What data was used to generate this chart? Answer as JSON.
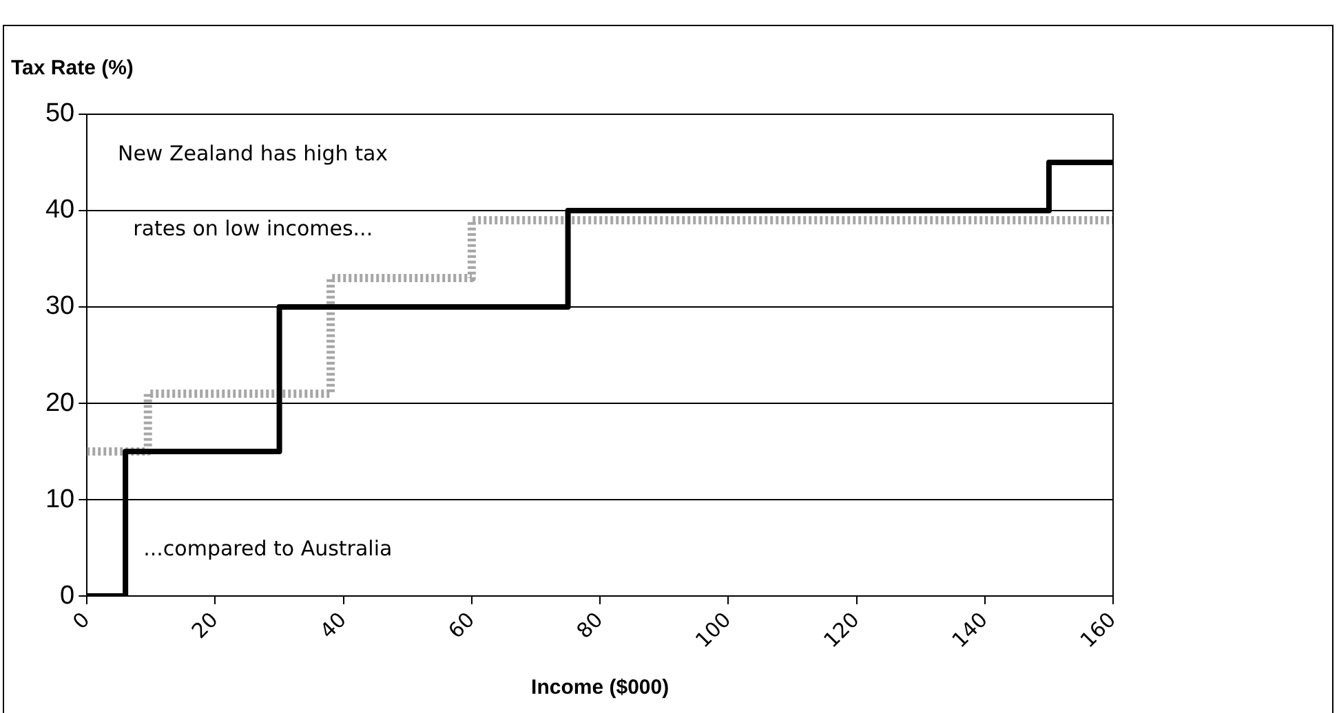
{
  "chart_data": {
    "type": "step",
    "ylabel": "Tax Rate (%)",
    "xlabel": "Income ($000)",
    "series": [
      {
        "color": "#000000",
        "line_style": "solid",
        "x": [
          0,
          6,
          30,
          75,
          150,
          160
        ],
        "values": [
          0,
          15,
          30,
          40,
          45,
          45
        ]
      },
      {
        "color": "#a6a6a6",
        "line_style": "dotted",
        "x": [
          0,
          9.5,
          38,
          60,
          160
        ],
        "values": [
          15,
          21,
          33,
          39,
          39
        ]
      }
    ],
    "xlim": [
      0,
      160
    ],
    "xticks": [
      0,
      20,
      40,
      60,
      80,
      100,
      120,
      140,
      160
    ],
    "ylim": [
      0,
      50
    ],
    "yticks": [
      0,
      10,
      20,
      30,
      40,
      50
    ],
    "grid": "y",
    "legend": false,
    "marker": "none",
    "annotations": [
      "New Zealand has high tax",
      "rates on low incomes...",
      "...compared to Australia"
    ]
  }
}
